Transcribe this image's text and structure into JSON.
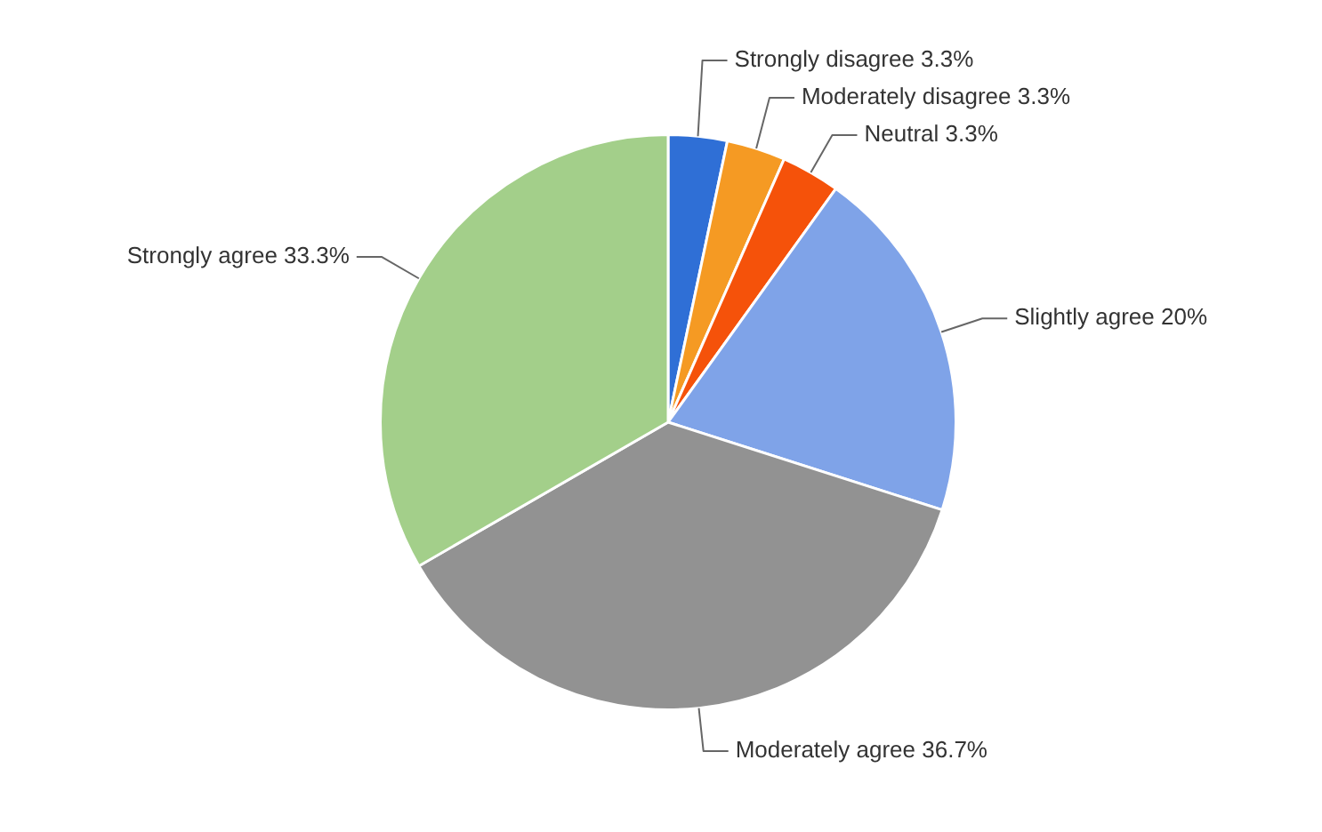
{
  "chart_data": {
    "type": "pie",
    "categories": [
      "Strongly disagree",
      "Moderately disagree",
      "Neutral",
      "Slightly agree",
      "Moderately agree",
      "Strongly agree"
    ],
    "values": [
      3.3,
      3.3,
      3.3,
      20,
      36.7,
      33.3
    ],
    "value_labels": [
      "3.3%",
      "3.3%",
      "3.3%",
      "20%",
      "36.7%",
      "33.3%"
    ],
    "colors": [
      "#2f6fd6",
      "#f59a23",
      "#f5520a",
      "#7fa3e8",
      "#929292",
      "#a3cf8a"
    ],
    "legend": false
  }
}
